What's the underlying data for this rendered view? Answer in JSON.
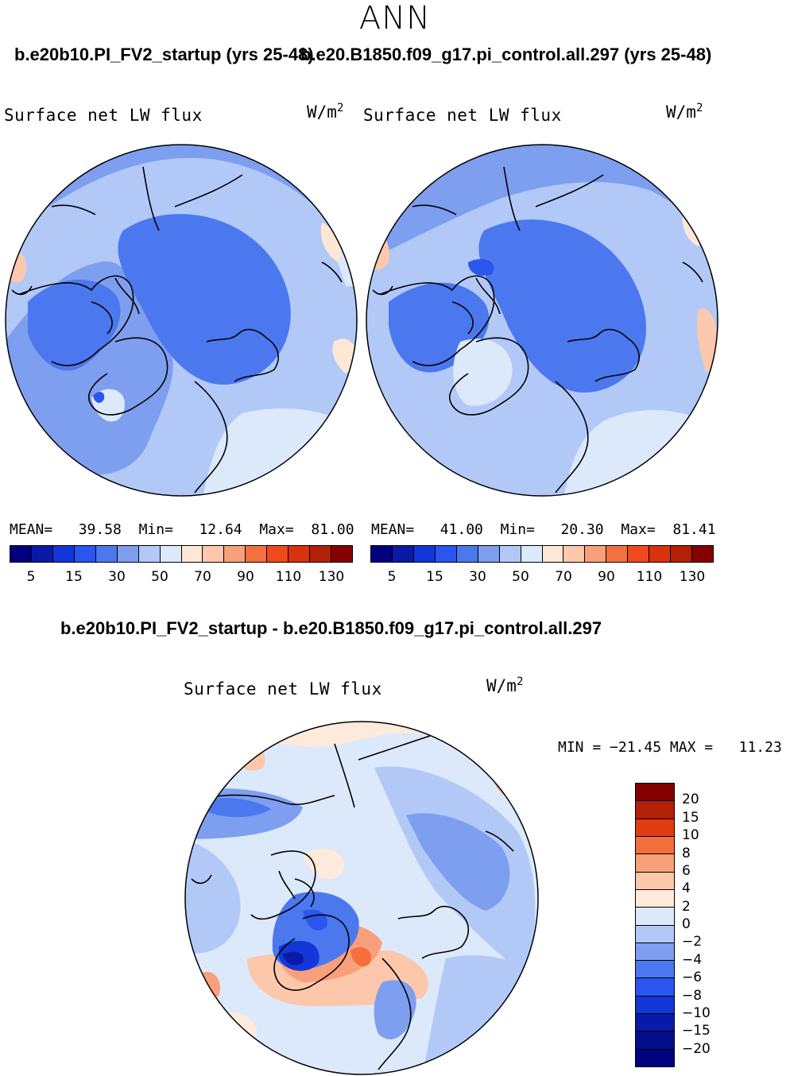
{
  "season": "ANN",
  "top_row": {
    "left_case_title": "b.e20b10.PI_FV2_startup (yrs 25-48)",
    "right_case_title": "b.e20.B1850.f09_g17.pi_control.all.297 (yrs 25-48)",
    "panels": [
      {
        "title": "Surface net LW flux",
        "units": "W/m",
        "units_exp": "2",
        "stats": {
          "mean_label": "MEAN=",
          "mean": "39.58",
          "min_label": "Min=",
          "min": "12.64",
          "max_label": "Max=",
          "max": "81.00"
        }
      },
      {
        "title": "Surface net LW flux",
        "units": "W/m",
        "units_exp": "2",
        "stats": {
          "mean_label": "MEAN=",
          "mean": "41.00",
          "min_label": "Min=",
          "min": "20.30",
          "max_label": "Max=",
          "max": "81.41"
        }
      }
    ],
    "colorbar": {
      "colors": [
        "#00007f",
        "#0a1aa8",
        "#1236d8",
        "#2a56ef",
        "#4b78ee",
        "#7e9ef0",
        "#b2c9f8",
        "#dce9fb",
        "#fee7d6",
        "#fdc8ac",
        "#f7a07b",
        "#f4703e",
        "#ee4a1e",
        "#d9320f",
        "#b41f07",
        "#850000"
      ],
      "tick_labels": [
        "5",
        "15",
        "30",
        "50",
        "70",
        "90",
        "110",
        "130"
      ]
    }
  },
  "bottom": {
    "title": "b.e20b10.PI_FV2_startup - b.e20.B1850.f09_g17.pi_control.all.297",
    "panel_title": "Surface net LW flux",
    "units": "W/m",
    "units_exp": "2",
    "minmax": {
      "min_label": "MIN =",
      "min": "−21.45",
      "max_label": "MAX =",
      "max": "11.23"
    },
    "colorbar": {
      "colors": [
        "#850000",
        "#b41f07",
        "#e23b10",
        "#f46f3b",
        "#f8a07b",
        "#fdc7ab",
        "#feeadb",
        "#dce9fb",
        "#b2c9f8",
        "#7e9ef0",
        "#4b78ee",
        "#2a56ef",
        "#1236d8",
        "#0a1aa8",
        "#020e8c",
        "#00007f"
      ],
      "tick_labels": [
        "20",
        "15",
        "10",
        "8",
        "6",
        "4",
        "2",
        "0",
        "−2",
        "−4",
        "−6",
        "−8",
        "−10",
        "−15",
        "−20"
      ]
    }
  },
  "land_color": "#000000"
}
